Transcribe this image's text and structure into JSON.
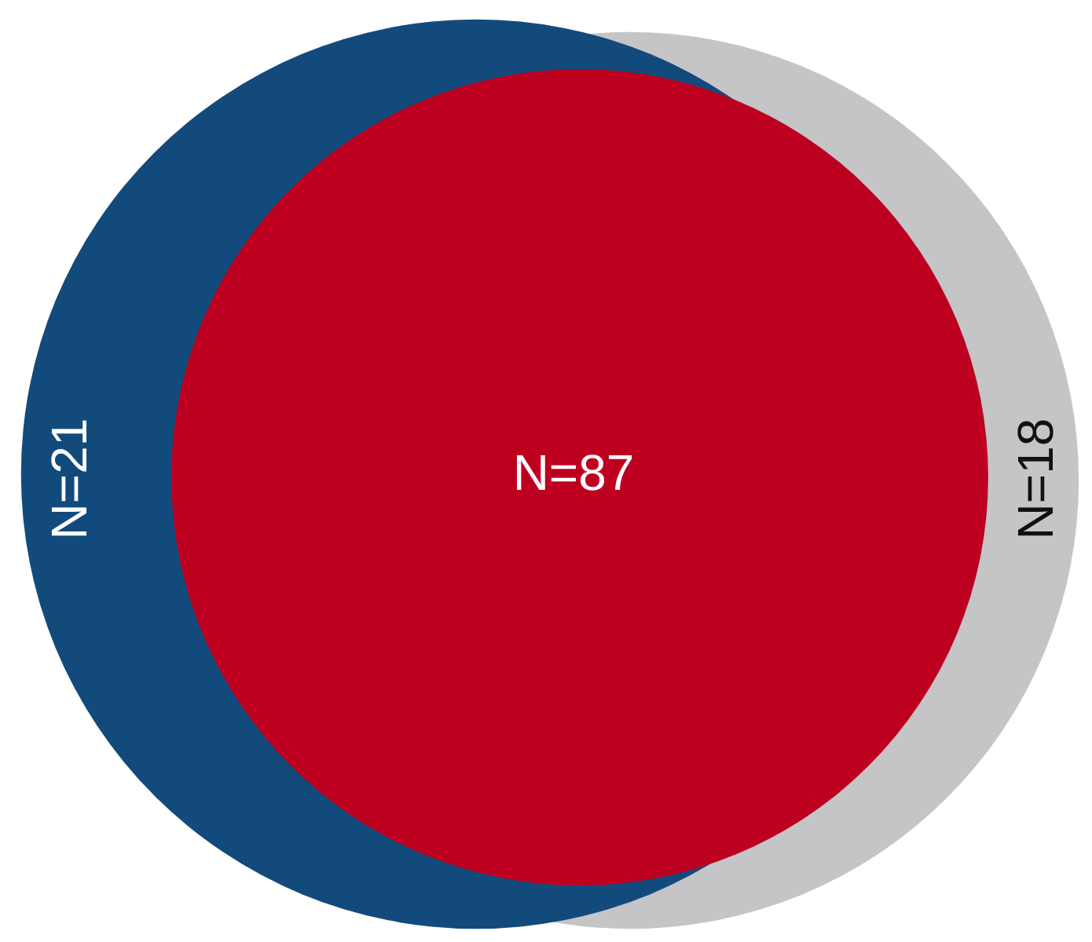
{
  "chart_data": {
    "type": "other",
    "categories": [
      null,
      null,
      null
    ],
    "values": [
      21,
      87,
      18
    ],
    "value_labels": [
      "N=21",
      "N=87",
      "N=18"
    ],
    "colors": [
      "#134a7c",
      "#bd0020",
      "#c5c4c7"
    ]
  }
}
